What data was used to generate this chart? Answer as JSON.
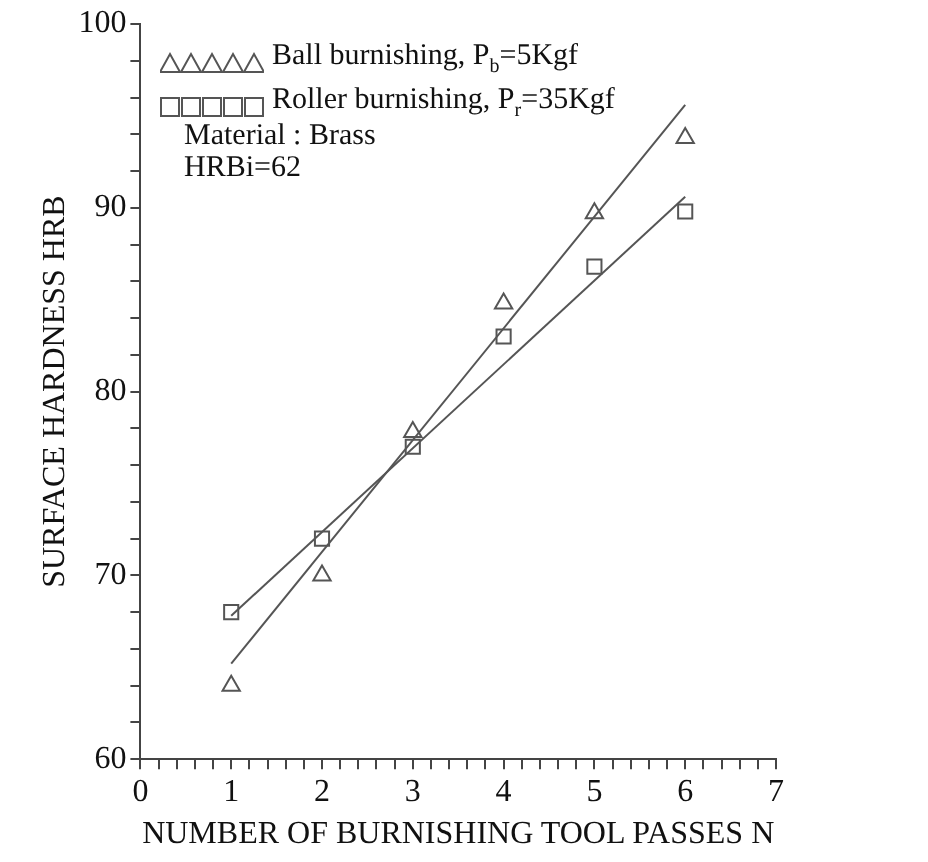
{
  "chart_data": {
    "type": "scatter",
    "xlabel": "NUMBER OF BURNISHING TOOL PASSES N",
    "ylabel": "SURFACE HARDNESS HRB",
    "xlim": [
      0,
      7
    ],
    "ylim": [
      60,
      100
    ],
    "xticks": [
      0,
      {
        "value": 0.2,
        "label": null
      },
      {
        "value": 0.4,
        "label": null
      },
      {
        "value": 0.6,
        "label": null
      },
      {
        "value": 0.8,
        "label": null
      },
      1,
      {
        "value": 1.2,
        "label": null
      },
      {
        "value": 1.4,
        "label": null
      },
      {
        "value": 1.6,
        "label": null
      },
      {
        "value": 1.8,
        "label": null
      },
      2,
      {
        "value": 2.2,
        "label": null
      },
      {
        "value": 2.4,
        "label": null
      },
      {
        "value": 2.6,
        "label": null
      },
      {
        "value": 2.8,
        "label": null
      },
      3,
      {
        "value": 3.2,
        "label": null
      },
      {
        "value": 3.4,
        "label": null
      },
      {
        "value": 3.6,
        "label": null
      },
      {
        "value": 3.8,
        "label": null
      },
      4,
      {
        "value": 4.2,
        "label": null
      },
      {
        "value": 4.4,
        "label": null
      },
      {
        "value": 4.6,
        "label": null
      },
      {
        "value": 4.8,
        "label": null
      },
      5,
      {
        "value": 5.2,
        "label": null
      },
      {
        "value": 5.4,
        "label": null
      },
      {
        "value": 5.6,
        "label": null
      },
      {
        "value": 5.8,
        "label": null
      },
      6,
      {
        "value": 6.2,
        "label": null
      },
      {
        "value": 6.4,
        "label": null
      },
      {
        "value": 6.6,
        "label": null
      },
      {
        "value": 6.8,
        "label": null
      },
      7
    ],
    "yticks": [
      60,
      {
        "value": 62,
        "label": null
      },
      {
        "value": 64,
        "label": null
      },
      {
        "value": 66,
        "label": null
      },
      {
        "value": 68,
        "label": null
      },
      70,
      {
        "value": 72,
        "label": null
      },
      {
        "value": 74,
        "label": null
      },
      {
        "value": 76,
        "label": null
      },
      {
        "value": 78,
        "label": null
      },
      80,
      {
        "value": 82,
        "label": null
      },
      {
        "value": 84,
        "label": null
      },
      {
        "value": 86,
        "label": null
      },
      {
        "value": 88,
        "label": null
      },
      90,
      {
        "value": 92,
        "label": null
      },
      {
        "value": 94,
        "label": null
      },
      {
        "value": 96,
        "label": null
      },
      {
        "value": 98,
        "label": null
      },
      100
    ],
    "grid": false,
    "legend": "top left",
    "series": [
      {
        "name": "Ball burnishing, P$_{b}$=5Kgf",
        "color": "#555555",
        "marker": "triangle",
        "x": [
          1,
          2,
          3,
          4,
          5,
          6
        ],
        "values": [
          64,
          70,
          77.8,
          84.8,
          89.7,
          93.8
        ]
      },
      {
        "name": "Roller burnishing, P$_{r}$=35Kgf",
        "color": "#555555",
        "marker": "square",
        "x": [
          1,
          2,
          3,
          4,
          5,
          6
        ],
        "values": [
          68,
          72,
          77,
          83,
          86.8,
          89.8
        ]
      },
      {
        "type": "line",
        "color": "#555555",
        "marker": "none",
        "x": [
          1,
          6
        ],
        "values": [
          65.2,
          95.6
        ]
      },
      {
        "type": "line",
        "color": "#555555",
        "marker": "none",
        "x": [
          1,
          6
        ],
        "values": [
          67.8,
          90.6
        ]
      }
    ],
    "annotations": [
      "Material : Brass",
      "HRBi=62"
    ]
  }
}
